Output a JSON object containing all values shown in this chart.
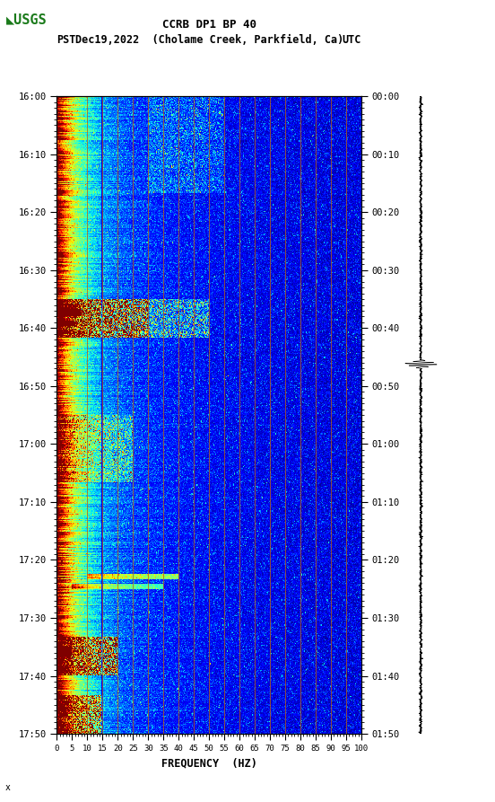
{
  "title_line1": "CCRB DP1 BP 40",
  "title_line2_left": "PST",
  "title_line2_mid": "Dec19,2022  (Cholame Creek, Parkfield, Ca)",
  "title_line2_right": "UTC",
  "xlabel": "FREQUENCY  (HZ)",
  "freq_min": 0,
  "freq_max": 100,
  "freq_ticks": [
    0,
    5,
    10,
    15,
    20,
    25,
    30,
    35,
    40,
    45,
    50,
    55,
    60,
    65,
    70,
    75,
    80,
    85,
    90,
    95,
    100
  ],
  "left_time_labels": [
    "16:00",
    "16:10",
    "16:20",
    "16:30",
    "16:40",
    "16:50",
    "17:00",
    "17:10",
    "17:20",
    "17:30",
    "17:40",
    "17:50"
  ],
  "right_time_labels": [
    "00:00",
    "00:10",
    "00:20",
    "00:30",
    "00:40",
    "00:50",
    "01:00",
    "01:10",
    "01:20",
    "01:30",
    "01:40",
    "01:50"
  ],
  "vertical_lines_freq": [
    10,
    15,
    20,
    25,
    30,
    35,
    40,
    45,
    50,
    55,
    60,
    65,
    70,
    75,
    80,
    85,
    90,
    95
  ],
  "vline_color": "#b86010",
  "background_color": "#ffffff",
  "spectrogram_seed": 12345,
  "n_time_bins": 660,
  "n_freq_bins": 400,
  "usgs_color": "#1a7a1a",
  "fig_width": 5.52,
  "fig_height": 8.93
}
